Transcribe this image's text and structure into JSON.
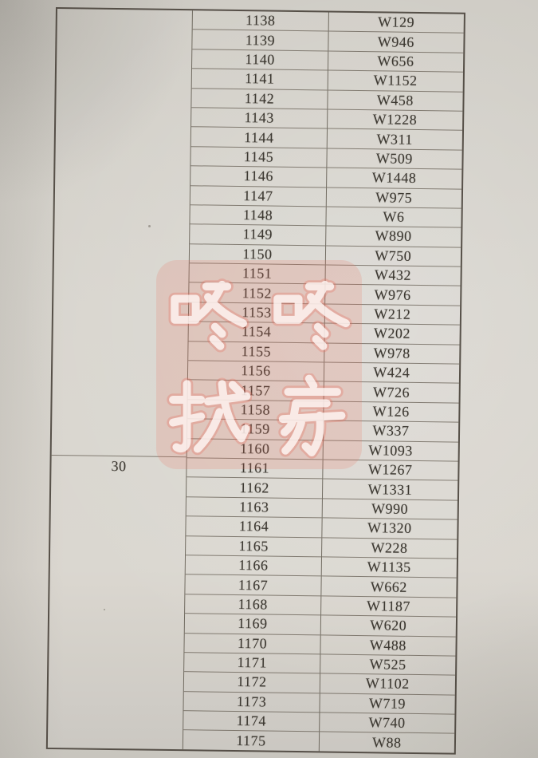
{
  "watermark": {
    "text": "咚咚找房",
    "line1": "咚咚",
    "line2": "找房",
    "tile_color": "#ec7866",
    "glyph_color": "#fffaf7"
  },
  "table": {
    "group_label": "30",
    "group_start_index": 23,
    "rows": [
      {
        "serial": "1138",
        "code": "W129"
      },
      {
        "serial": "1139",
        "code": "W946"
      },
      {
        "serial": "1140",
        "code": "W656"
      },
      {
        "serial": "1141",
        "code": "W1152"
      },
      {
        "serial": "1142",
        "code": "W458"
      },
      {
        "serial": "1143",
        "code": "W1228"
      },
      {
        "serial": "1144",
        "code": "W311"
      },
      {
        "serial": "1145",
        "code": "W509"
      },
      {
        "serial": "1146",
        "code": "W1448"
      },
      {
        "serial": "1147",
        "code": "W975"
      },
      {
        "serial": "1148",
        "code": "W6"
      },
      {
        "serial": "1149",
        "code": "W890"
      },
      {
        "serial": "1150",
        "code": "W750"
      },
      {
        "serial": "1151",
        "code": "W432"
      },
      {
        "serial": "1152",
        "code": "W976"
      },
      {
        "serial": "1153",
        "code": "W212"
      },
      {
        "serial": "1154",
        "code": "W202"
      },
      {
        "serial": "1155",
        "code": "W978"
      },
      {
        "serial": "1156",
        "code": "W424"
      },
      {
        "serial": "1157",
        "code": "W726"
      },
      {
        "serial": "1158",
        "code": "W126"
      },
      {
        "serial": "1159",
        "code": "W337"
      },
      {
        "serial": "1160",
        "code": "W1093"
      },
      {
        "serial": "1161",
        "code": "W1267"
      },
      {
        "serial": "1162",
        "code": "W1331"
      },
      {
        "serial": "1163",
        "code": "W990"
      },
      {
        "serial": "1164",
        "code": "W1320"
      },
      {
        "serial": "1165",
        "code": "W228"
      },
      {
        "serial": "1166",
        "code": "W1135"
      },
      {
        "serial": "1167",
        "code": "W662"
      },
      {
        "serial": "1168",
        "code": "W1187"
      },
      {
        "serial": "1169",
        "code": "W620"
      },
      {
        "serial": "1170",
        "code": "W488"
      },
      {
        "serial": "1171",
        "code": "W525"
      },
      {
        "serial": "1172",
        "code": "W1102"
      },
      {
        "serial": "1173",
        "code": "W719"
      },
      {
        "serial": "1174",
        "code": "W740"
      },
      {
        "serial": "1175",
        "code": "W88"
      }
    ]
  }
}
